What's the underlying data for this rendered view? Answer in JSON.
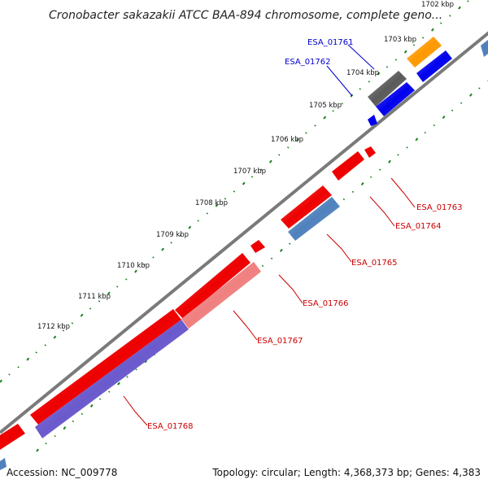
{
  "title": "Cronobacter sakazakii ATCC BAA-894 chromosome, complete geno...",
  "footer": {
    "accession": "Accession: NC_009778",
    "summary": "Topology: circular; Length: 4,368,373 bp; Genes: 4,383"
  },
  "colors": {
    "backbone": "#7a7a7a",
    "gc_ticks": "#1a7f1a",
    "label_red": "#cc0000",
    "label_blue": "#0000cc",
    "gene_red": "#ee0000",
    "gene_blue": "#0000ee",
    "gene_orange": "#ff9900",
    "gene_gray": "#5a5a5a",
    "gene_steel": "#4f81bd",
    "gene_pink": "#f08080",
    "gene_purple": "#6a5acd"
  },
  "scale_ticks": [
    "1702 kbp",
    "1703 kbp",
    "1704 kbp",
    "1705 kbp",
    "1706 kbp",
    "1707 kbp",
    "1708 kbp",
    "1709 kbp",
    "1710 kbp",
    "1711 kbp",
    "1712 kbp"
  ],
  "labels": [
    {
      "name": "ESA_01761",
      "color": "label_blue"
    },
    {
      "name": "ESA_01762",
      "color": "label_blue"
    },
    {
      "name": "ESA_01763",
      "color": "label_red"
    },
    {
      "name": "ESA_01764",
      "color": "label_red"
    },
    {
      "name": "ESA_01765",
      "color": "label_red"
    },
    {
      "name": "ESA_01766",
      "color": "label_red"
    },
    {
      "name": "ESA_01767",
      "color": "label_red"
    },
    {
      "name": "ESA_01768",
      "color": "label_red"
    }
  ]
}
